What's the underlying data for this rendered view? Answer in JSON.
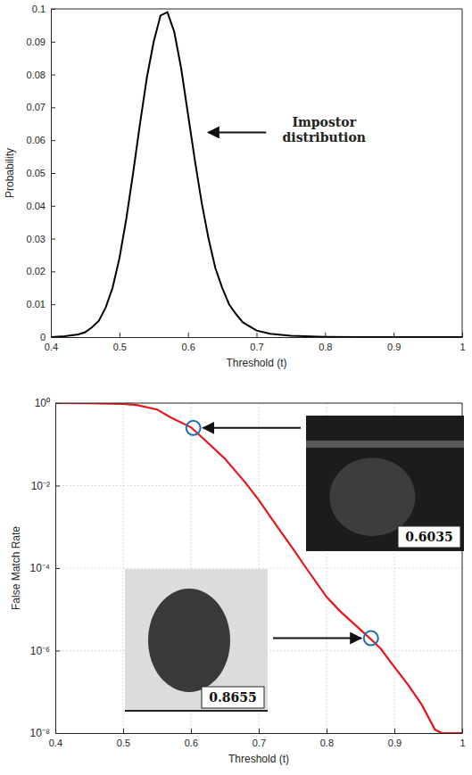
{
  "chart_data": [
    {
      "type": "line",
      "xlabel": "Threshold (t)",
      "ylabel": "Probability",
      "annotation": "Impostor distribution",
      "x": [
        0.4,
        0.42,
        0.44,
        0.45,
        0.46,
        0.47,
        0.48,
        0.49,
        0.5,
        0.51,
        0.52,
        0.53,
        0.54,
        0.55,
        0.56,
        0.57,
        0.58,
        0.59,
        0.6,
        0.61,
        0.62,
        0.63,
        0.64,
        0.65,
        0.66,
        0.67,
        0.68,
        0.7,
        0.72,
        0.75,
        0.8,
        0.85,
        0.9,
        1.0
      ],
      "values": [
        0,
        0.0003,
        0.0008,
        0.0015,
        0.003,
        0.005,
        0.009,
        0.015,
        0.024,
        0.036,
        0.05,
        0.065,
        0.079,
        0.09,
        0.098,
        0.099,
        0.093,
        0.082,
        0.068,
        0.054,
        0.041,
        0.03,
        0.021,
        0.015,
        0.01,
        0.007,
        0.0045,
        0.002,
        0.001,
        0.0004,
        0.0001,
        0,
        0,
        0
      ],
      "color": "#000000",
      "xlim": [
        0.4,
        1
      ],
      "ylim": [
        0,
        0.1
      ],
      "xticks": [
        0.4,
        0.5,
        0.6,
        0.7,
        0.8,
        0.9,
        1
      ],
      "yticks": [
        0,
        0.01,
        0.02,
        0.03,
        0.04,
        0.05,
        0.06,
        0.07,
        0.08,
        0.09,
        0.1
      ],
      "grid": false
    },
    {
      "type": "line",
      "xlabel": "Threshold (t)",
      "ylabel": "False Match Rate",
      "x": [
        0.4,
        0.45,
        0.5,
        0.52,
        0.55,
        0.57,
        0.6,
        0.62,
        0.65,
        0.68,
        0.7,
        0.72,
        0.75,
        0.77,
        0.8,
        0.82,
        0.85,
        0.87,
        0.88,
        0.9,
        0.92,
        0.94,
        0.96,
        0.97,
        1.0
      ],
      "values": [
        1,
        0.995,
        0.96,
        0.9,
        0.7,
        0.45,
        0.26,
        0.13,
        0.045,
        0.012,
        0.0045,
        0.0015,
        0.0003,
        0.0001,
        2e-05,
        9e-06,
        3.2e-06,
        1.6e-06,
        1.1e-06,
        4e-07,
        1.5e-07,
        5e-08,
        1.2e-08,
        1e-08,
        1e-08
      ],
      "color": "#e8161b",
      "log": "y",
      "xlim": [
        0.4,
        1
      ],
      "ylim": [
        1e-08,
        1
      ],
      "xticks": [
        0.4,
        0.5,
        0.6,
        0.7,
        0.8,
        0.9,
        1
      ],
      "yticks": [
        {
          "value": 1,
          "label": "10⁰"
        },
        {
          "value": 0.01,
          "label": "10⁻²"
        },
        {
          "value": 0.0001,
          "label": "10⁻⁴"
        },
        {
          "value": 1e-06,
          "label": "10⁻⁶"
        },
        {
          "value": 1e-08,
          "label": "10⁻⁸"
        }
      ],
      "grid": true,
      "annotations": [
        {
          "x": 0.6035,
          "y": 0.25,
          "label": "0.6035"
        },
        {
          "x": 0.8655,
          "y": 2e-06,
          "label": "0.8655"
        }
      ]
    }
  ]
}
